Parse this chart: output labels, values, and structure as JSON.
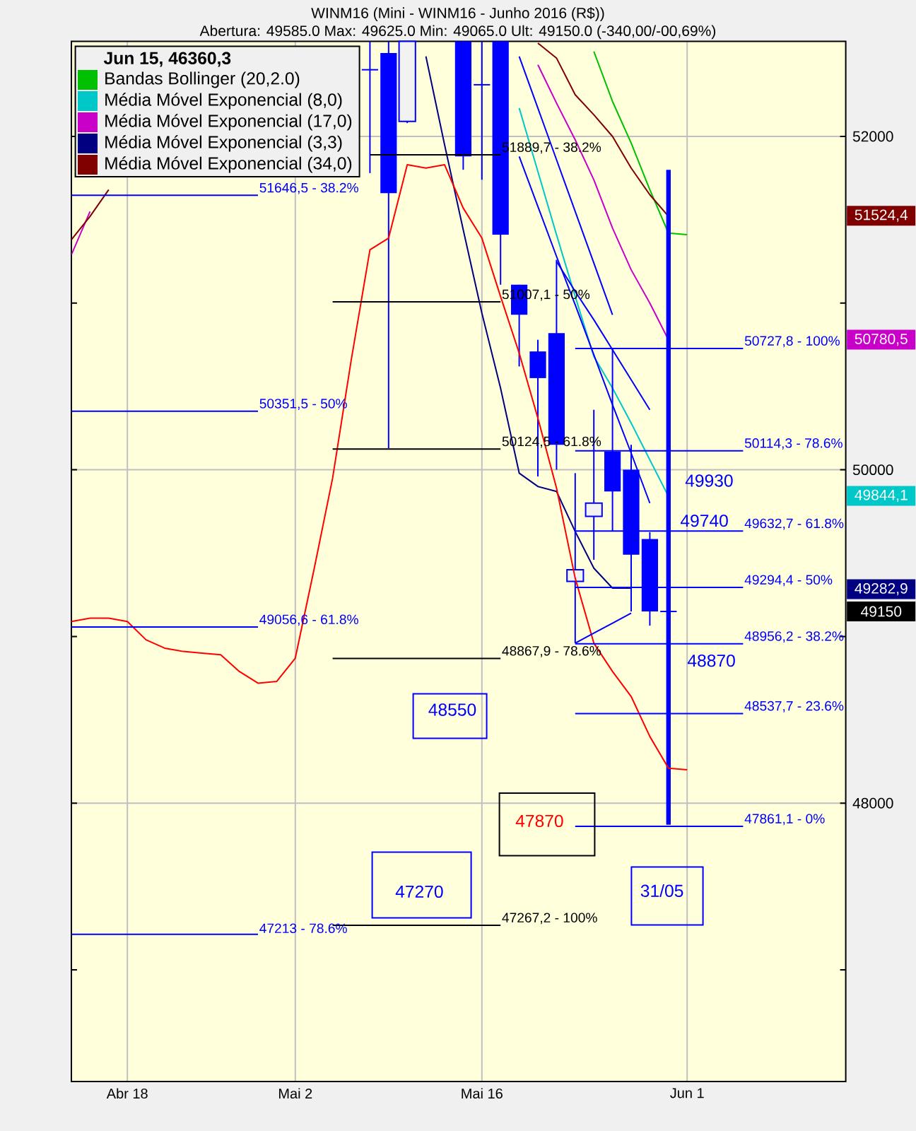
{
  "chart_data": {
    "type": "candlestick",
    "title": "WINM16 (Mini - WINM16 - Junho 2016 (R$))",
    "subtitle": "Abertura: 49585.0 Max: 49625.0 Min: 49065.0 Ult: 49150.0 (-340,00/-00,69%)",
    "legend_title": "Jun 15, 46360,3",
    "categories": [
      null,
      null,
      null,
      "Abr 18",
      null,
      null,
      null,
      null,
      null,
      null,
      null,
      null,
      "Mai 2",
      null,
      null,
      null,
      null,
      null,
      null,
      null,
      null,
      null,
      "Mai 16",
      null,
      null,
      null,
      null,
      null,
      null,
      null,
      null,
      null,
      null,
      "Jun 1",
      null,
      null,
      null,
      null,
      null,
      null,
      null,
      null
    ],
    "ohlc": [
      null,
      null,
      null,
      null,
      null,
      null,
      null,
      null,
      null,
      null,
      null,
      null,
      null,
      null,
      null,
      null,
      [
        52400,
        52570,
        51780,
        52400
      ],
      [
        52500,
        52570,
        50130,
        51660
      ],
      [
        52090,
        52570,
        52080,
        52570
      ],
      null,
      null,
      [
        52570,
        52570,
        51800,
        51880
      ],
      [
        52310,
        52570,
        51740,
        52310
      ],
      [
        52570,
        52570,
        51110,
        51410
      ],
      [
        51110,
        51110,
        50620,
        50930
      ],
      [
        50710,
        50780,
        49960,
        50550
      ],
      [
        50820,
        51260,
        50000,
        50150
      ],
      [
        49330,
        49980,
        48960,
        49400
      ],
      [
        49720,
        50360,
        49460,
        49800
      ],
      [
        50110,
        50730,
        49630,
        49870
      ],
      [
        50000,
        50150,
        49150,
        49490
      ],
      [
        49585,
        49625,
        49065,
        49150
      ],
      [
        49150,
        49180,
        49120,
        49150
      ],
      null,
      null,
      null,
      null,
      null,
      null,
      null,
      null,
      null
    ],
    "color": "#0000ff",
    "series": [
      {
        "type": "line",
        "name": "Bandas Bollinger (20,2.0)",
        "color": "#00c000",
        "values": [
          null,
          null,
          null,
          null,
          null,
          null,
          null,
          null,
          null,
          null,
          null,
          null,
          null,
          null,
          null,
          null,
          null,
          null,
          null,
          null,
          null,
          null,
          null,
          null,
          null,
          null,
          null,
          null,
          52510,
          52210,
          51960,
          51680,
          51420,
          51410,
          null,
          null,
          null,
          null,
          null,
          null,
          null,
          null
        ]
      },
      {
        "type": "line",
        "name": "Média Móvel Exponencial (8,0)",
        "color": "#00c8c8",
        "values": [
          null,
          null,
          null,
          null,
          null,
          null,
          null,
          null,
          null,
          null,
          null,
          null,
          null,
          null,
          null,
          null,
          null,
          null,
          null,
          null,
          null,
          null,
          null,
          null,
          52170,
          51790,
          51410,
          51040,
          50680,
          50490,
          50280,
          50060,
          49840,
          null,
          null,
          null,
          null,
          null,
          null,
          null,
          null,
          null
        ]
      },
      {
        "type": "line",
        "name": "Média Móvel Exponencial (17,0)",
        "color": "#c800c8",
        "values": [
          51290,
          51550,
          null,
          null,
          null,
          null,
          null,
          null,
          null,
          null,
          null,
          null,
          null,
          null,
          null,
          null,
          null,
          null,
          null,
          null,
          null,
          null,
          null,
          null,
          null,
          52430,
          52200,
          51980,
          51740,
          51450,
          51200,
          51000,
          50780,
          null,
          null,
          null,
          null,
          null,
          null,
          null,
          null,
          null
        ]
      },
      {
        "type": "line",
        "name": "Média Móvel Exponencial (3,3)",
        "color": "#000080",
        "values": [
          null,
          null,
          null,
          null,
          null,
          null,
          null,
          null,
          null,
          null,
          null,
          null,
          null,
          null,
          null,
          null,
          null,
          null,
          null,
          52480,
          51950,
          51440,
          50940,
          50490,
          49980,
          49900,
          49870,
          49630,
          49410,
          49290,
          49290,
          null,
          null,
          null,
          null,
          null,
          null,
          null,
          null,
          null,
          null,
          null
        ]
      },
      {
        "type": "line",
        "name": "Média Móvel Exponencial (34,0)",
        "color": "#800000",
        "values": [
          51380,
          51520,
          51680,
          null,
          null,
          null,
          null,
          null,
          null,
          null,
          null,
          null,
          null,
          null,
          null,
          null,
          null,
          null,
          null,
          null,
          null,
          null,
          null,
          null,
          null,
          52560,
          52470,
          52250,
          52130,
          52000,
          51810,
          51650,
          51520,
          null,
          null,
          null,
          null,
          null,
          null,
          null,
          null,
          null
        ]
      },
      {
        "type": "line",
        "color": "#ff0000",
        "values": [
          49090,
          49110,
          49110,
          49090,
          48980,
          48930,
          48910,
          48900,
          48890,
          48790,
          48720,
          48730,
          48870,
          49400,
          49950,
          50660,
          51320,
          51390,
          51830,
          51810,
          51830,
          51570,
          51390,
          51040,
          50700,
          50310,
          49890,
          49350,
          48960,
          48790,
          48640,
          48400,
          48210,
          48200,
          null,
          null,
          null,
          null,
          null,
          null,
          null,
          null
        ]
      },
      {
        "type": "line",
        "color": "#0000ff",
        "values": [
          51646.5,
          51646.5,
          51646.5,
          51646.5,
          51646.5,
          51646.5,
          51646.5,
          51646.5,
          51646.5,
          51646.5,
          51646.5,
          null,
          null,
          null,
          null,
          null,
          null,
          null,
          null,
          null,
          null,
          null,
          null,
          null,
          null,
          null,
          null,
          null,
          null,
          null,
          null,
          null,
          null,
          null,
          null,
          null,
          null,
          null,
          null,
          null,
          null,
          null
        ],
        "value_labels": [
          null,
          null,
          null,
          null,
          null,
          null,
          null,
          null,
          null,
          null,
          "51646,5 - 38.2%",
          null,
          null,
          null,
          null,
          null,
          null,
          null,
          null,
          null,
          null,
          null,
          null,
          null,
          null,
          null,
          null,
          null,
          null,
          null,
          null,
          null,
          null,
          null,
          null,
          null,
          null,
          null,
          null,
          null,
          null,
          null
        ]
      },
      {
        "type": "line",
        "color": "#0000ff",
        "values": [
          50351.5,
          50351.5,
          50351.5,
          50351.5,
          50351.5,
          50351.5,
          50351.5,
          50351.5,
          50351.5,
          50351.5,
          50351.5,
          null,
          null,
          null,
          null,
          null,
          null,
          null,
          null,
          null,
          null,
          null,
          null,
          null,
          null,
          null,
          null,
          null,
          null,
          null,
          null,
          null,
          null,
          null,
          null,
          null,
          null,
          null,
          null,
          null,
          null,
          null
        ],
        "value_labels": [
          null,
          null,
          null,
          null,
          null,
          null,
          null,
          null,
          null,
          null,
          "50351,5 - 50%",
          null,
          null,
          null,
          null,
          null,
          null,
          null,
          null,
          null,
          null,
          null,
          null,
          null,
          null,
          null,
          null,
          null,
          null,
          null,
          null,
          null,
          null,
          null,
          null,
          null,
          null,
          null,
          null,
          null,
          null,
          null
        ]
      },
      {
        "type": "line",
        "color": "#0000ff",
        "values": [
          49056.6,
          49056.6,
          49056.6,
          49056.6,
          49056.6,
          49056.6,
          49056.6,
          49056.6,
          49056.6,
          49056.6,
          49056.6,
          null,
          null,
          null,
          null,
          null,
          null,
          null,
          null,
          null,
          null,
          null,
          null,
          null,
          null,
          null,
          null,
          null,
          null,
          null,
          null,
          null,
          null,
          null,
          null,
          null,
          null,
          null,
          null,
          null,
          null,
          null
        ],
        "value_labels": [
          null,
          null,
          null,
          null,
          null,
          null,
          null,
          null,
          null,
          null,
          "49056,6 - 61.8%",
          null,
          null,
          null,
          null,
          null,
          null,
          null,
          null,
          null,
          null,
          null,
          null,
          null,
          null,
          null,
          null,
          null,
          null,
          null,
          null,
          null,
          null,
          null,
          null,
          null,
          null,
          null,
          null,
          null,
          null,
          null
        ]
      },
      {
        "type": "line",
        "color": "#0000ff",
        "values": [
          47213,
          47213,
          47213,
          47213,
          47213,
          47213,
          47213,
          47213,
          47213,
          47213,
          47213,
          null,
          null,
          null,
          null,
          null,
          null,
          null,
          null,
          null,
          null,
          null,
          null,
          null,
          null,
          null,
          null,
          null,
          null,
          null,
          null,
          null,
          null,
          null,
          null,
          null,
          null,
          null,
          null,
          null,
          null,
          null
        ],
        "value_labels": [
          null,
          null,
          null,
          null,
          null,
          null,
          null,
          null,
          null,
          null,
          "47213 - 78.6%",
          null,
          null,
          null,
          null,
          null,
          null,
          null,
          null,
          null,
          null,
          null,
          null,
          null,
          null,
          null,
          null,
          null,
          null,
          null,
          null,
          null,
          null,
          null,
          null,
          null,
          null,
          null,
          null,
          null,
          null,
          null
        ]
      },
      {
        "type": "line",
        "color": "#000000",
        "values": [
          null,
          null,
          null,
          null,
          null,
          null,
          null,
          null,
          null,
          null,
          null,
          null,
          null,
          null,
          null,
          null,
          51889.7,
          51889.7,
          51889.7,
          51889.7,
          51889.7,
          51889.7,
          51889.7,
          51889.7,
          null,
          null,
          null,
          null,
          null,
          null,
          null,
          null,
          null,
          null,
          null,
          null,
          null,
          null,
          null,
          null,
          null,
          null
        ],
        "value_labels": [
          null,
          null,
          null,
          null,
          null,
          null,
          null,
          null,
          null,
          null,
          null,
          null,
          null,
          null,
          null,
          null,
          null,
          null,
          null,
          null,
          null,
          null,
          null,
          "51889,7 - 38.2%",
          null,
          null,
          null,
          null,
          null,
          null,
          null,
          null,
          null,
          null,
          null,
          null,
          null,
          null,
          null,
          null,
          null,
          null
        ]
      },
      {
        "type": "line",
        "color": "#000000",
        "values": [
          null,
          null,
          null,
          null,
          null,
          null,
          null,
          null,
          null,
          null,
          null,
          null,
          null,
          null,
          51007.1,
          51007.1,
          51007.1,
          51007.1,
          51007.1,
          51007.1,
          51007.1,
          51007.1,
          51007.1,
          51007.1,
          null,
          null,
          null,
          null,
          null,
          null,
          null,
          null,
          null,
          null,
          null,
          null,
          null,
          null,
          null,
          null,
          null,
          null
        ],
        "value_labels": [
          null,
          null,
          null,
          null,
          null,
          null,
          null,
          null,
          null,
          null,
          null,
          null,
          null,
          null,
          null,
          null,
          null,
          null,
          null,
          null,
          null,
          null,
          null,
          "51007,1 - 50%",
          null,
          null,
          null,
          null,
          null,
          null,
          null,
          null,
          null,
          null,
          null,
          null,
          null,
          null,
          null,
          null,
          null,
          null
        ]
      },
      {
        "type": "line",
        "color": "#000000",
        "values": [
          null,
          null,
          null,
          null,
          null,
          null,
          null,
          null,
          null,
          null,
          null,
          null,
          null,
          null,
          50124.5,
          50124.5,
          50124.5,
          50124.5,
          50124.5,
          50124.5,
          50124.5,
          50124.5,
          50124.5,
          50124.5,
          null,
          null,
          null,
          null,
          null,
          null,
          null,
          null,
          null,
          null,
          null,
          null,
          null,
          null,
          null,
          null,
          null,
          null
        ],
        "value_labels": [
          null,
          null,
          null,
          null,
          null,
          null,
          null,
          null,
          null,
          null,
          null,
          null,
          null,
          null,
          null,
          null,
          null,
          null,
          null,
          null,
          null,
          null,
          null,
          "50124,5 - 61.8%",
          null,
          null,
          null,
          null,
          null,
          null,
          null,
          null,
          null,
          null,
          null,
          null,
          null,
          null,
          null,
          null,
          null,
          null
        ]
      },
      {
        "type": "line",
        "color": "#000000",
        "values": [
          null,
          null,
          null,
          null,
          null,
          null,
          null,
          null,
          null,
          null,
          null,
          null,
          null,
          null,
          48867.9,
          48867.9,
          48867.9,
          48867.9,
          48867.9,
          48867.9,
          48867.9,
          48867.9,
          48867.9,
          48867.9,
          null,
          null,
          null,
          null,
          null,
          null,
          null,
          null,
          null,
          null,
          null,
          null,
          null,
          null,
          null,
          null,
          null,
          null
        ],
        "value_labels": [
          null,
          null,
          null,
          null,
          null,
          null,
          null,
          null,
          null,
          null,
          null,
          null,
          null,
          null,
          null,
          null,
          null,
          null,
          null,
          null,
          null,
          null,
          null,
          "48867,9 - 78.6%",
          null,
          null,
          null,
          null,
          null,
          null,
          null,
          null,
          null,
          null,
          null,
          null,
          null,
          null,
          null,
          null,
          null,
          null
        ]
      },
      {
        "type": "line",
        "color": "#000000",
        "values": [
          null,
          null,
          null,
          null,
          null,
          null,
          null,
          null,
          null,
          null,
          null,
          null,
          null,
          null,
          47267.2,
          47267.2,
          47267.2,
          47267.2,
          47267.2,
          47267.2,
          47267.2,
          47267.2,
          47267.2,
          47267.2,
          null,
          null,
          null,
          null,
          null,
          null,
          null,
          null,
          null,
          null,
          null,
          null,
          null,
          null,
          null,
          null,
          null,
          null
        ],
        "value_labels": [
          null,
          null,
          null,
          null,
          null,
          null,
          null,
          null,
          null,
          null,
          null,
          null,
          null,
          null,
          null,
          null,
          null,
          null,
          null,
          null,
          null,
          null,
          null,
          "47267,2 - 100%",
          null,
          null,
          null,
          null,
          null,
          null,
          null,
          null,
          null,
          null,
          null,
          null,
          null,
          null,
          null,
          null,
          null,
          null
        ]
      },
      {
        "type": "line",
        "color": "#0000ff",
        "values": [
          null,
          null,
          null,
          null,
          null,
          null,
          null,
          null,
          null,
          null,
          null,
          null,
          null,
          null,
          null,
          null,
          null,
          null,
          null,
          null,
          null,
          null,
          null,
          null,
          null,
          null,
          null,
          50727.8,
          50727.8,
          50727.8,
          50727.8,
          50727.8,
          50727.8,
          50727.8,
          50727.8,
          50727.8,
          50727.8,
          null,
          null,
          null,
          null,
          null
        ],
        "value_labels": [
          null,
          null,
          null,
          null,
          null,
          null,
          null,
          null,
          null,
          null,
          null,
          null,
          null,
          null,
          null,
          null,
          null,
          null,
          null,
          null,
          null,
          null,
          null,
          null,
          null,
          null,
          null,
          null,
          null,
          null,
          null,
          null,
          null,
          null,
          null,
          null,
          "50727,8 - 100%",
          null,
          null,
          null,
          null,
          null
        ]
      },
      {
        "type": "line",
        "color": "#0000ff",
        "values": [
          null,
          null,
          null,
          null,
          null,
          null,
          null,
          null,
          null,
          null,
          null,
          null,
          null,
          null,
          null,
          null,
          null,
          null,
          null,
          null,
          null,
          null,
          null,
          null,
          null,
          null,
          null,
          50114.3,
          50114.3,
          50114.3,
          50114.3,
          50114.3,
          50114.3,
          50114.3,
          50114.3,
          50114.3,
          50114.3,
          null,
          null,
          null,
          null,
          null
        ],
        "value_labels": [
          null,
          null,
          null,
          null,
          null,
          null,
          null,
          null,
          null,
          null,
          null,
          null,
          null,
          null,
          null,
          null,
          null,
          null,
          null,
          null,
          null,
          null,
          null,
          null,
          null,
          null,
          null,
          null,
          null,
          null,
          null,
          null,
          null,
          null,
          null,
          null,
          "50114,3 - 78.6%",
          null,
          null,
          null,
          null,
          null
        ]
      },
      {
        "type": "line",
        "color": "#0000ff",
        "values": [
          null,
          null,
          null,
          null,
          null,
          null,
          null,
          null,
          null,
          null,
          null,
          null,
          null,
          null,
          null,
          null,
          null,
          null,
          null,
          null,
          null,
          null,
          null,
          null,
          null,
          null,
          null,
          49632.7,
          49632.7,
          49632.7,
          49632.7,
          49632.7,
          49632.7,
          49632.7,
          49632.7,
          49632.7,
          49632.7,
          null,
          null,
          null,
          null,
          null
        ],
        "value_labels": [
          null,
          null,
          null,
          null,
          null,
          null,
          null,
          null,
          null,
          null,
          null,
          null,
          null,
          null,
          null,
          null,
          null,
          null,
          null,
          null,
          null,
          null,
          null,
          null,
          null,
          null,
          null,
          null,
          null,
          null,
          null,
          null,
          null,
          null,
          null,
          null,
          "49632,7 - 61.8%",
          null,
          null,
          null,
          null,
          null
        ]
      },
      {
        "type": "line",
        "color": "#0000ff",
        "values": [
          null,
          null,
          null,
          null,
          null,
          null,
          null,
          null,
          null,
          null,
          null,
          null,
          null,
          null,
          null,
          null,
          null,
          null,
          null,
          null,
          null,
          null,
          null,
          null,
          null,
          null,
          null,
          49294.4,
          49294.4,
          49294.4,
          49294.4,
          49294.4,
          49294.4,
          49294.4,
          49294.4,
          49294.4,
          49294.4,
          null,
          null,
          null,
          null,
          null
        ],
        "value_labels": [
          null,
          null,
          null,
          null,
          null,
          null,
          null,
          null,
          null,
          null,
          null,
          null,
          null,
          null,
          null,
          null,
          null,
          null,
          null,
          null,
          null,
          null,
          null,
          null,
          null,
          null,
          null,
          null,
          null,
          null,
          null,
          null,
          null,
          null,
          null,
          null,
          "49294,4 - 50%",
          null,
          null,
          null,
          null,
          null
        ]
      },
      {
        "type": "line",
        "color": "#0000ff",
        "values": [
          null,
          null,
          null,
          null,
          null,
          null,
          null,
          null,
          null,
          null,
          null,
          null,
          null,
          null,
          null,
          null,
          null,
          null,
          null,
          null,
          null,
          null,
          null,
          null,
          null,
          null,
          null,
          48956.2,
          48956.2,
          48956.2,
          48956.2,
          48956.2,
          48956.2,
          48956.2,
          48956.2,
          48956.2,
          48956.2,
          null,
          null,
          null,
          null,
          null
        ],
        "value_labels": [
          null,
          null,
          null,
          null,
          null,
          null,
          null,
          null,
          null,
          null,
          null,
          null,
          null,
          null,
          null,
          null,
          null,
          null,
          null,
          null,
          null,
          null,
          null,
          null,
          null,
          null,
          null,
          null,
          null,
          null,
          null,
          null,
          null,
          null,
          null,
          null,
          "48956,2 - 38.2%",
          null,
          null,
          null,
          null,
          null
        ]
      },
      {
        "type": "line",
        "color": "#0000ff",
        "values": [
          null,
          null,
          null,
          null,
          null,
          null,
          null,
          null,
          null,
          null,
          null,
          null,
          null,
          null,
          null,
          null,
          null,
          null,
          null,
          null,
          null,
          null,
          null,
          null,
          null,
          null,
          null,
          48537.7,
          48537.7,
          48537.7,
          48537.7,
          48537.7,
          48537.7,
          48537.7,
          48537.7,
          48537.7,
          48537.7,
          null,
          null,
          null,
          null,
          null
        ],
        "value_labels": [
          null,
          null,
          null,
          null,
          null,
          null,
          null,
          null,
          null,
          null,
          null,
          null,
          null,
          null,
          null,
          null,
          null,
          null,
          null,
          null,
          null,
          null,
          null,
          null,
          null,
          null,
          null,
          null,
          null,
          null,
          null,
          null,
          null,
          null,
          null,
          null,
          "48537,7 - 23.6%",
          null,
          null,
          null,
          null,
          null
        ]
      },
      {
        "type": "line",
        "color": "#0000ff",
        "values": [
          null,
          null,
          null,
          null,
          null,
          null,
          null,
          null,
          null,
          null,
          null,
          null,
          null,
          null,
          null,
          null,
          null,
          null,
          null,
          null,
          null,
          null,
          null,
          null,
          null,
          null,
          null,
          47861.1,
          47861.1,
          47861.1,
          47861.1,
          47861.1,
          47861.1,
          47861.1,
          47861.1,
          47861.1,
          47861.1,
          null,
          null,
          null,
          null,
          null
        ],
        "value_labels": [
          null,
          null,
          null,
          null,
          null,
          null,
          null,
          null,
          null,
          null,
          null,
          null,
          null,
          null,
          null,
          null,
          null,
          null,
          null,
          null,
          null,
          null,
          null,
          null,
          null,
          null,
          null,
          null,
          null,
          null,
          null,
          null,
          null,
          null,
          null,
          null,
          "47861,1 - 0%",
          null,
          null,
          null,
          null,
          null
        ]
      },
      {
        "type": "line",
        "color": "#0000ff",
        "values": [
          null,
          null,
          null,
          null,
          null,
          null,
          null,
          null,
          null,
          null,
          null,
          null,
          null,
          null,
          null,
          null,
          null,
          null,
          null,
          null,
          null,
          null,
          null,
          null,
          52480,
          52170,
          51860,
          51550,
          51240,
          50930,
          null,
          null,
          null,
          null,
          null,
          null,
          null,
          null,
          null,
          null,
          null,
          null
        ]
      },
      {
        "type": "line",
        "color": "#0000ff",
        "values": [
          null,
          null,
          null,
          null,
          null,
          null,
          null,
          null,
          null,
          null,
          null,
          null,
          null,
          null,
          null,
          null,
          null,
          null,
          null,
          null,
          null,
          null,
          null,
          null,
          51880,
          51580,
          51280,
          50990,
          50690,
          50390,
          50100,
          49800,
          null,
          null,
          null,
          null,
          null,
          null,
          null,
          null,
          null,
          null
        ]
      },
      {
        "type": "line",
        "color": "#0000ff",
        "values": [
          null,
          null,
          null,
          null,
          null,
          null,
          null,
          null,
          null,
          null,
          null,
          null,
          null,
          null,
          null,
          null,
          null,
          null,
          null,
          null,
          null,
          null,
          null,
          null,
          null,
          null,
          51250,
          51070,
          50900,
          50720,
          50540,
          50360,
          null,
          null,
          null,
          null,
          null,
          null,
          null,
          null,
          null,
          null
        ]
      },
      {
        "type": "line",
        "color": "#0000ff",
        "values": [
          null,
          null,
          null,
          null,
          null,
          null,
          null,
          null,
          null,
          null,
          null,
          null,
          null,
          null,
          null,
          null,
          null,
          null,
          null,
          null,
          null,
          null,
          null,
          null,
          null,
          null,
          null,
          48960,
          49020,
          49080,
          49140,
          null,
          null,
          null,
          null,
          null,
          null,
          null,
          null,
          null,
          null,
          null
        ]
      },
      {
        "type": "bar",
        "color": "#0000ff",
        "values": [
          null,
          null,
          null,
          null,
          null,
          null,
          null,
          null,
          null,
          null,
          null,
          null,
          null,
          null,
          null,
          null,
          null,
          null,
          null,
          null,
          null,
          null,
          null,
          null,
          null,
          null,
          null,
          null,
          null,
          null,
          null,
          null,
          3930,
          null,
          null,
          null,
          null,
          null,
          null,
          null,
          null,
          null
        ],
        "base": [
          null,
          null,
          null,
          null,
          null,
          null,
          null,
          null,
          null,
          null,
          null,
          null,
          null,
          null,
          null,
          null,
          null,
          null,
          null,
          null,
          null,
          null,
          null,
          null,
          null,
          null,
          null,
          null,
          null,
          null,
          null,
          null,
          47870,
          null,
          null,
          null,
          null,
          null,
          null,
          null,
          null,
          null
        ]
      }
    ],
    "ylim": [
      46330,
      52570
    ],
    "yticks": [
      {
        "value": 47000,
        "label": null
      },
      48000,
      {
        "value": 49000,
        "label": null
      },
      50000,
      {
        "value": 51000,
        "label": null
      },
      52000
    ],
    "grid": true,
    "legend": "top left",
    "annotations": [
      "48550",
      "47270",
      "47870",
      "31/05",
      "49930",
      "49740",
      "48870",
      "49150",
      "51524,4",
      "50780,5",
      "49844,1",
      "49282,9"
    ]
  }
}
